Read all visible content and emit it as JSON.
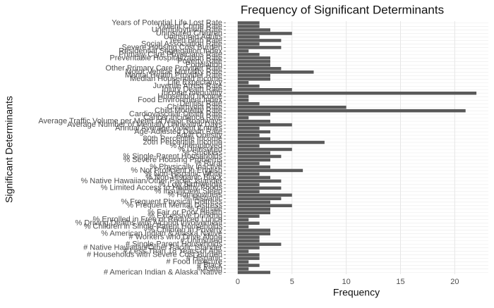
{
  "chart_data": {
    "type": "bar",
    "orientation": "horizontal",
    "title": "Frequency of Significant Determinants",
    "x_label": "Frequency",
    "y_label": "Significant Determinants",
    "categories": [
      "# American Indian & Alaska Native",
      "# Asian",
      "# Black",
      "# Food Insecure",
      "# Hispanic",
      "# Households with Severe Cost Burden",
      "# Less Than 18 Years of Age",
      "# Native Hawaiian/Other Pacific Islander",
      "# Single-Parent Households",
      "# Uninsured",
      "# Workers who Drive Alone",
      "% American Indian & Alaska Native",
      "% Children in Poverty",
      "% Children in Single-Parent Households",
      "% Driving Deaths with Alcohol Involvement",
      "% Enrolled in Free or Reduced Lunch",
      "% Excessive Drinking",
      "% Fair or Poor Health",
      "% Female",
      "% Frequent Mental Distress",
      "% Frequent Physical Distress",
      "% Hispanic",
      "% Homeowners",
      "% Insufficient Sleep",
      "% Limited Access to Healthy Foods",
      "% Low Birthweight",
      "% Native Hawaiian/Other Pacific Islander",
      "% Non-Hispanic Black",
      "% Non-Hispanic White",
      "% Not Proficient in English",
      "% Physically Inactive",
      "% Rural",
      "% Severe Housing Problems",
      "% Single-Parent Households",
      "% Smokers",
      "% Uninsured",
      "% Unemployed",
      "20th Percentile Income",
      "80th Percentile Income",
      "Adult Obesity",
      "Age-Adjusted Death Rate",
      "Annual Average Violent Crimes",
      "Average Number of Mentally Unhealthy Days",
      "Average Traffic Volume per Meter of Major Roadways",
      "Cancer Incidence Rate",
      "Cardiovascular Death Rate",
      "Child Mortality Rate",
      "Chlamydia Rate",
      "Dentist Rate",
      "Food Environment Index",
      "Household Income",
      "Income Inequality",
      "Injury Death Rate",
      "Juvenile Arrest Rate",
      "Life Expectancy",
      "Median Household Income",
      "Mental Health Provider Rate",
      "Motor Vehicle Mortality Rate",
      "Other Primary Care Provider Rate",
      "Population",
      "Poverty Rate",
      "Preventable Hospitalization Rate",
      "Primary Care Physicians Rate",
      "Residential Segregation Index",
      "Severe Housing Cost Burden",
      "Social Association Rate",
      "Teen Birth Rate",
      "Uninsured Adults",
      "Uninsured Children",
      "Unemployment Rate",
      "Violent Crime Rate",
      "Years of Potential Life Lost Rate"
    ],
    "values": [
      3,
      1,
      2,
      1,
      2,
      2,
      1,
      2,
      4,
      2,
      2,
      3,
      3,
      1,
      2,
      1,
      2,
      3,
      3,
      5,
      3,
      4,
      5,
      2,
      4,
      2,
      4,
      3,
      2,
      6,
      3,
      2,
      3,
      4,
      3,
      5,
      2,
      8,
      3,
      2,
      3,
      2,
      5,
      3,
      1,
      3,
      21,
      10,
      2,
      1,
      1,
      22,
      5,
      2,
      1,
      3,
      3,
      7,
      4,
      3,
      3,
      3,
      2,
      1,
      4,
      2,
      4,
      2,
      5,
      3,
      2,
      2
    ],
    "color": "#595959",
    "xlim": [
      -1.1,
      23.1
    ],
    "xticks": [
      0,
      5,
      10,
      15,
      20
    ],
    "grid": true
  }
}
